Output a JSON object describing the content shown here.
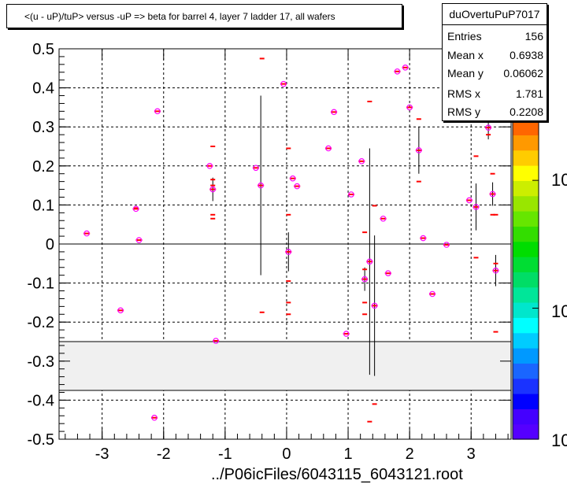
{
  "plot": {
    "title": "<(u - uP)/tuP> versus  -uP => beta for barrel 4, layer 7 ladder 17, all wafers",
    "xlabel": "../P06icFiles/6043115_6043121.root"
  },
  "stats": {
    "name": "duOvertuPuP7017",
    "rows": [
      {
        "key": "Entries",
        "value": "156"
      },
      {
        "key": "Mean x",
        "value": "0.6938"
      },
      {
        "key": "Mean y",
        "value": "0.06062"
      },
      {
        "key": "RMS x",
        "value": "1.781"
      },
      {
        "key": "RMS y",
        "value": "0.2208"
      }
    ]
  },
  "colors": {
    "marker": "#ff00ff",
    "dash": "#ff0000",
    "band": "#f0f0f0"
  },
  "chart_data": {
    "type": "scatter",
    "xlim": [
      -3.7,
      3.65
    ],
    "ylim": [
      -0.5,
      0.5
    ],
    "x_ticks": [
      "-3",
      "-2",
      "-1",
      "0",
      "1",
      "2",
      "3"
    ],
    "y_ticks": [
      "-0.5",
      "-0.4",
      "-0.3",
      "-0.2",
      "-0.1",
      "0",
      "0.1",
      "0.2",
      "0.3",
      "0.4",
      "0.5"
    ],
    "grid": true,
    "band": [
      -0.375,
      -0.25
    ],
    "colorbar_labels": [
      "10",
      "10",
      "10"
    ],
    "points": [
      {
        "x": -3.25,
        "y": 0.027
      },
      {
        "x": -2.7,
        "y": -0.17
      },
      {
        "x": -2.45,
        "y": 0.09
      },
      {
        "x": -2.4,
        "y": 0.01
      },
      {
        "x": -2.15,
        "y": -0.445
      },
      {
        "x": -2.1,
        "y": 0.34
      },
      {
        "x": -1.25,
        "y": 0.2
      },
      {
        "x": -1.2,
        "y": 0.14,
        "err": 0.03
      },
      {
        "x": -1.15,
        "y": -0.248
      },
      {
        "x": -0.5,
        "y": 0.195
      },
      {
        "x": -0.42,
        "y": 0.15,
        "err": 0.23
      },
      {
        "x": -0.05,
        "y": 0.41
      },
      {
        "x": 0.03,
        "y": -0.02,
        "err": 0.05
      },
      {
        "x": 0.1,
        "y": 0.168
      },
      {
        "x": 0.17,
        "y": 0.148
      },
      {
        "x": 0.68,
        "y": 0.245
      },
      {
        "x": 0.77,
        "y": 0.338
      },
      {
        "x": 0.97,
        "y": -0.23
      },
      {
        "x": 1.05,
        "y": 0.127
      },
      {
        "x": 1.22,
        "y": 0.212
      },
      {
        "x": 1.27,
        "y": -0.09,
        "err": 0.03
      },
      {
        "x": 1.35,
        "y": -0.045,
        "err": 0.29
      },
      {
        "x": 1.43,
        "y": -0.158,
        "err": 0.18
      },
      {
        "x": 1.57,
        "y": 0.065
      },
      {
        "x": 1.65,
        "y": -0.075
      },
      {
        "x": 1.8,
        "y": 0.442
      },
      {
        "x": 1.93,
        "y": 0.452
      },
      {
        "x": 2.0,
        "y": 0.35
      },
      {
        "x": 2.15,
        "y": 0.24,
        "err": 0.06
      },
      {
        "x": 2.22,
        "y": 0.015
      },
      {
        "x": 2.37,
        "y": -0.128
      },
      {
        "x": 2.6,
        "y": -0.002
      },
      {
        "x": 2.97,
        "y": 0.112
      },
      {
        "x": 3.08,
        "y": 0.095,
        "err": 0.06
      },
      {
        "x": 3.28,
        "y": 0.298,
        "err": 0.03
      },
      {
        "x": 3.35,
        "y": 0.128,
        "err": 0.03
      },
      {
        "x": 3.4,
        "y": -0.068,
        "err": 0.04
      }
    ],
    "dashes": [
      {
        "x": -2.45,
        "y": 0.092
      },
      {
        "x": -1.2,
        "y": 0.25
      },
      {
        "x": -1.2,
        "y": 0.165
      },
      {
        "x": -1.2,
        "y": 0.15
      },
      {
        "x": -1.2,
        "y": 0.075
      },
      {
        "x": -1.2,
        "y": 0.065
      },
      {
        "x": -0.4,
        "y": 0.475
      },
      {
        "x": -0.4,
        "y": -0.175
      },
      {
        "x": 0.03,
        "y": 0.245
      },
      {
        "x": 0.03,
        "y": 0.075
      },
      {
        "x": 0.03,
        "y": -0.095
      },
      {
        "x": 0.03,
        "y": -0.15
      },
      {
        "x": 0.03,
        "y": -0.18
      },
      {
        "x": 1.27,
        "y": 0.03
      },
      {
        "x": 1.27,
        "y": -0.065
      },
      {
        "x": 1.27,
        "y": -0.15
      },
      {
        "x": 1.27,
        "y": -0.18
      },
      {
        "x": 1.35,
        "y": 0.365
      },
      {
        "x": 1.35,
        "y": -0.455
      },
      {
        "x": 1.43,
        "y": 0.098
      },
      {
        "x": 1.43,
        "y": -0.41
      },
      {
        "x": 2.15,
        "y": 0.32
      },
      {
        "x": 2.15,
        "y": 0.16
      },
      {
        "x": 3.08,
        "y": 0.225
      },
      {
        "x": 3.08,
        "y": -0.035
      },
      {
        "x": 3.28,
        "y": 0.32
      },
      {
        "x": 3.28,
        "y": 0.28
      },
      {
        "x": 3.35,
        "y": 0.18
      },
      {
        "x": 3.35,
        "y": 0.075
      },
      {
        "x": 3.4,
        "y": 0.075
      },
      {
        "x": 3.4,
        "y": -0.05
      },
      {
        "x": 3.4,
        "y": -0.225
      }
    ]
  }
}
